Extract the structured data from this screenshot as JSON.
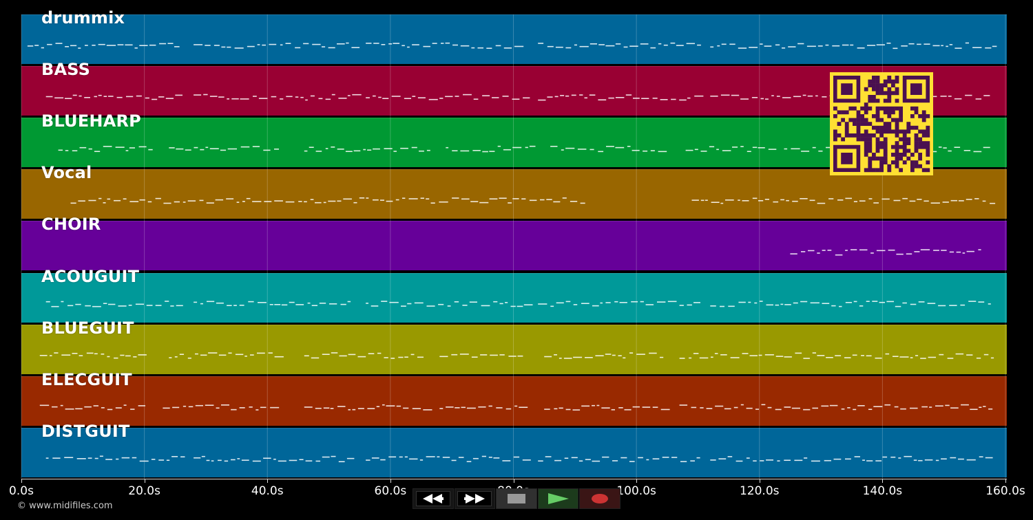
{
  "colors": {
    "background": "#000000",
    "note_color": "#ffffff",
    "qr_fg": "#4a1050",
    "qr_bg": "#ffe033"
  },
  "tracks": [
    {
      "label": "drummix",
      "color": "#006699"
    },
    {
      "label": "BASS",
      "color": "#990033"
    },
    {
      "label": "BLUEHARP",
      "color": "#009933"
    },
    {
      "label": "Vocal",
      "color": "#996600"
    },
    {
      "label": "CHOIR",
      "color": "#660099"
    },
    {
      "label": "ACOUGUIT",
      "color": "#009999"
    },
    {
      "label": "BLUEGUIT",
      "color": "#999900"
    },
    {
      "label": "ELECGUIT",
      "color": "#992900"
    },
    {
      "label": "DISTGUIT",
      "color": "#006699"
    }
  ],
  "timeline": {
    "ticks": [
      "0.0s",
      "20.0s",
      "40.0s",
      "60.0s",
      "80.0s",
      "100.0s",
      "120.0s",
      "140.0s",
      "160.0s"
    ],
    "tick_values": [
      0,
      20,
      40,
      60,
      80,
      100,
      120,
      140,
      160
    ],
    "max_seconds": 160
  },
  "transport": {
    "rewind_icon": "rewind-icon",
    "ff_icon": "fast-forward-icon",
    "stop_icon": "stop-icon",
    "play_icon": "play-icon",
    "record_icon": "record-icon"
  },
  "footer": {
    "copyright": "© www.midifiles.com"
  }
}
